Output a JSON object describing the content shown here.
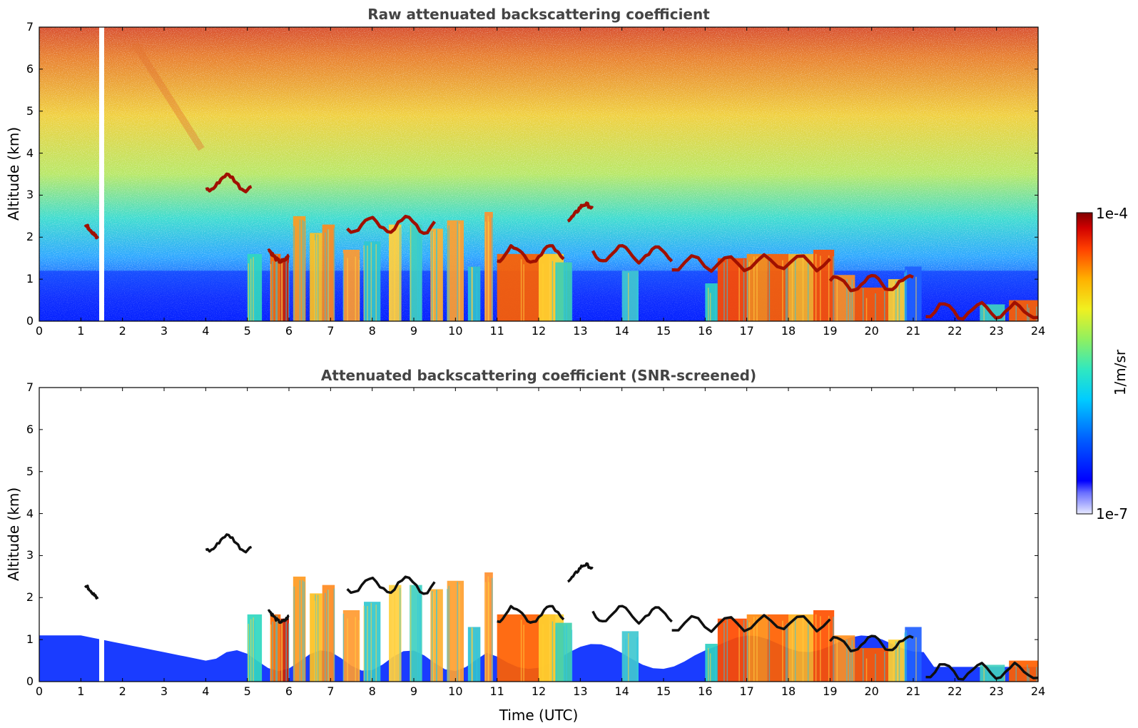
{
  "chart_data": [
    {
      "type": "heatmap",
      "title": "Raw attenuated backscattering coefficient",
      "xlabel": "",
      "ylabel": "Altitude (km)",
      "xlim": [
        0,
        24
      ],
      "ylim": [
        0,
        7
      ],
      "xticks": [
        "0",
        "1",
        "2",
        "3",
        "4",
        "5",
        "6",
        "7",
        "8",
        "9",
        "10",
        "11",
        "12",
        "13",
        "14",
        "15",
        "16",
        "17",
        "18",
        "19",
        "20",
        "21",
        "22",
        "23",
        "24"
      ],
      "yticks": [
        "0",
        "1",
        "2",
        "3",
        "4",
        "5",
        "6",
        "7"
      ],
      "grid": false,
      "data_gap_time_utc": 1.5,
      "cloud_layers": [
        {
          "t_start": 1.1,
          "t_end": 1.4,
          "alt_km": 2.1
        },
        {
          "t_start": 4.0,
          "t_end": 5.1,
          "alt_km": 3.3
        },
        {
          "t_start": 5.5,
          "t_end": 6.0,
          "alt_km": 1.6
        },
        {
          "t_start": 7.4,
          "t_end": 9.5,
          "alt_km": 2.3
        },
        {
          "t_start": 11.0,
          "t_end": 12.6,
          "alt_km": 1.6
        },
        {
          "t_start": 12.7,
          "t_end": 13.3,
          "alt_km": 2.6
        },
        {
          "t_start": 13.3,
          "t_end": 15.2,
          "alt_km": 1.6
        },
        {
          "t_start": 15.2,
          "t_end": 19.0,
          "alt_km": 1.4
        },
        {
          "t_start": 19.0,
          "t_end": 21.0,
          "alt_km": 0.9
        },
        {
          "t_start": 21.3,
          "t_end": 24.0,
          "alt_km": 0.25
        }
      ]
    },
    {
      "type": "heatmap",
      "title": "Attenuated backscattering coefficient (SNR-screened)",
      "xlabel": "Time (UTC)",
      "ylabel": "Altitude (km)",
      "xlim": [
        0,
        24
      ],
      "ylim": [
        0,
        7
      ],
      "xticks": [
        "0",
        "1",
        "2",
        "3",
        "4",
        "5",
        "6",
        "7",
        "8",
        "9",
        "10",
        "11",
        "12",
        "13",
        "14",
        "15",
        "16",
        "17",
        "18",
        "19",
        "20",
        "21",
        "22",
        "23",
        "24"
      ],
      "yticks": [
        "0",
        "1",
        "2",
        "3",
        "4",
        "5",
        "6",
        "7"
      ],
      "grid": false,
      "data_gap_time_utc": 1.5
    }
  ],
  "colorbar": {
    "label": "1/m/sr",
    "max_label": "1e-4",
    "min_label": "1e-7",
    "scale": "log",
    "range": [
      1e-07,
      0.0001
    ],
    "colormap": "jet"
  },
  "colors": {
    "title": "#444444",
    "gap": "#ffffff"
  }
}
